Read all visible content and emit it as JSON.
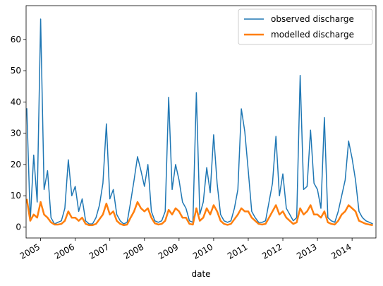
{
  "chart_data": {
    "type": "line",
    "xlabel": "date",
    "x": [
      2004.6,
      2004.7,
      2004.8,
      2004.9,
      2005.0,
      2005.1,
      2005.2,
      2005.3,
      2005.4,
      2005.5,
      2005.6,
      2005.7,
      2005.8,
      2005.9,
      2006.0,
      2006.1,
      2006.2,
      2006.3,
      2006.4,
      2006.5,
      2006.6,
      2006.7,
      2006.8,
      2006.9,
      2007.0,
      2007.1,
      2007.2,
      2007.3,
      2007.4,
      2007.5,
      2007.6,
      2007.7,
      2007.8,
      2007.9,
      2008.0,
      2008.1,
      2008.2,
      2008.3,
      2008.4,
      2008.5,
      2008.6,
      2008.7,
      2008.8,
      2008.9,
      2009.0,
      2009.1,
      2009.2,
      2009.3,
      2009.4,
      2009.5,
      2009.6,
      2009.7,
      2009.8,
      2009.9,
      2010.0,
      2010.1,
      2010.2,
      2010.3,
      2010.4,
      2010.5,
      2010.6,
      2010.7,
      2010.8,
      2010.9,
      2011.0,
      2011.1,
      2011.2,
      2011.3,
      2011.4,
      2011.5,
      2011.6,
      2011.7,
      2011.8,
      2011.9,
      2012.0,
      2012.1,
      2012.2,
      2012.3,
      2012.4,
      2012.5,
      2012.6,
      2012.7,
      2012.8,
      2012.9,
      2013.0,
      2013.1,
      2013.2,
      2013.3,
      2013.4,
      2013.5,
      2013.6,
      2013.7,
      2013.8,
      2013.9,
      2014.0,
      2014.1,
      2014.2,
      2014.3,
      2014.4,
      2014.5,
      2014.6
    ],
    "series": [
      {
        "name": "observed discharge",
        "color": "#1f77b4",
        "width": 1.5,
        "values": [
          38,
          2,
          23,
          8,
          66.5,
          12,
          18,
          3,
          1,
          1.5,
          2,
          6,
          21.5,
          10,
          13,
          5,
          9,
          2,
          1,
          1,
          3,
          7,
          14,
          33,
          9,
          12,
          4,
          2,
          1,
          1.5,
          8,
          15,
          22.5,
          18,
          13,
          20,
          5,
          2,
          1.5,
          2,
          5,
          41.5,
          12,
          20,
          15,
          8,
          6,
          2,
          1.5,
          43,
          4,
          8,
          19,
          11,
          29.5,
          14,
          4,
          2,
          1.5,
          2,
          6,
          12,
          37.8,
          30.5,
          18,
          5,
          3,
          1.5,
          1.5,
          2,
          8,
          14,
          29,
          10,
          17,
          6,
          4,
          2,
          3,
          48.5,
          12,
          13,
          31,
          14,
          12,
          6,
          35,
          3,
          2,
          1.5,
          5,
          10,
          15,
          27.5,
          22,
          15,
          5,
          3,
          2,
          1.5,
          1
        ]
      },
      {
        "name": "modelled discharge",
        "color": "#ff7f0e",
        "width": 2.5,
        "values": [
          9,
          2,
          4,
          3,
          8,
          4,
          3,
          1.5,
          0.8,
          0.8,
          1,
          2,
          5,
          3,
          3,
          2,
          3,
          1,
          0.6,
          0.6,
          1,
          2.5,
          4,
          7.5,
          4,
          5,
          2,
          1,
          0.6,
          0.8,
          3,
          5,
          8,
          6,
          5,
          6,
          3,
          1.2,
          0.8,
          1,
          2,
          5.5,
          4,
          6,
          5,
          3,
          3,
          1,
          0.8,
          6,
          2,
          3,
          6,
          4,
          7,
          5,
          2,
          1,
          0.7,
          1,
          2.5,
          4,
          6,
          5,
          5,
          3,
          2,
          1,
          0.8,
          1,
          3,
          5,
          7,
          4,
          5,
          3,
          2,
          1,
          1.5,
          6,
          4,
          5,
          7,
          4,
          4,
          3,
          5,
          1.5,
          1,
          0.8,
          2,
          4,
          5,
          7,
          6,
          5,
          2,
          1.5,
          1,
          0.8,
          0.6
        ]
      }
    ],
    "xlim": [
      2004.58,
      2014.69
    ],
    "xticks": [
      2005,
      2006,
      2007,
      2008,
      2009,
      2010,
      2011,
      2012,
      2013,
      2014
    ],
    "ylim": [
      -3.5,
      70.8
    ],
    "yticks": [
      0,
      10,
      20,
      30,
      40,
      50,
      60
    ],
    "legend": "upper right"
  }
}
